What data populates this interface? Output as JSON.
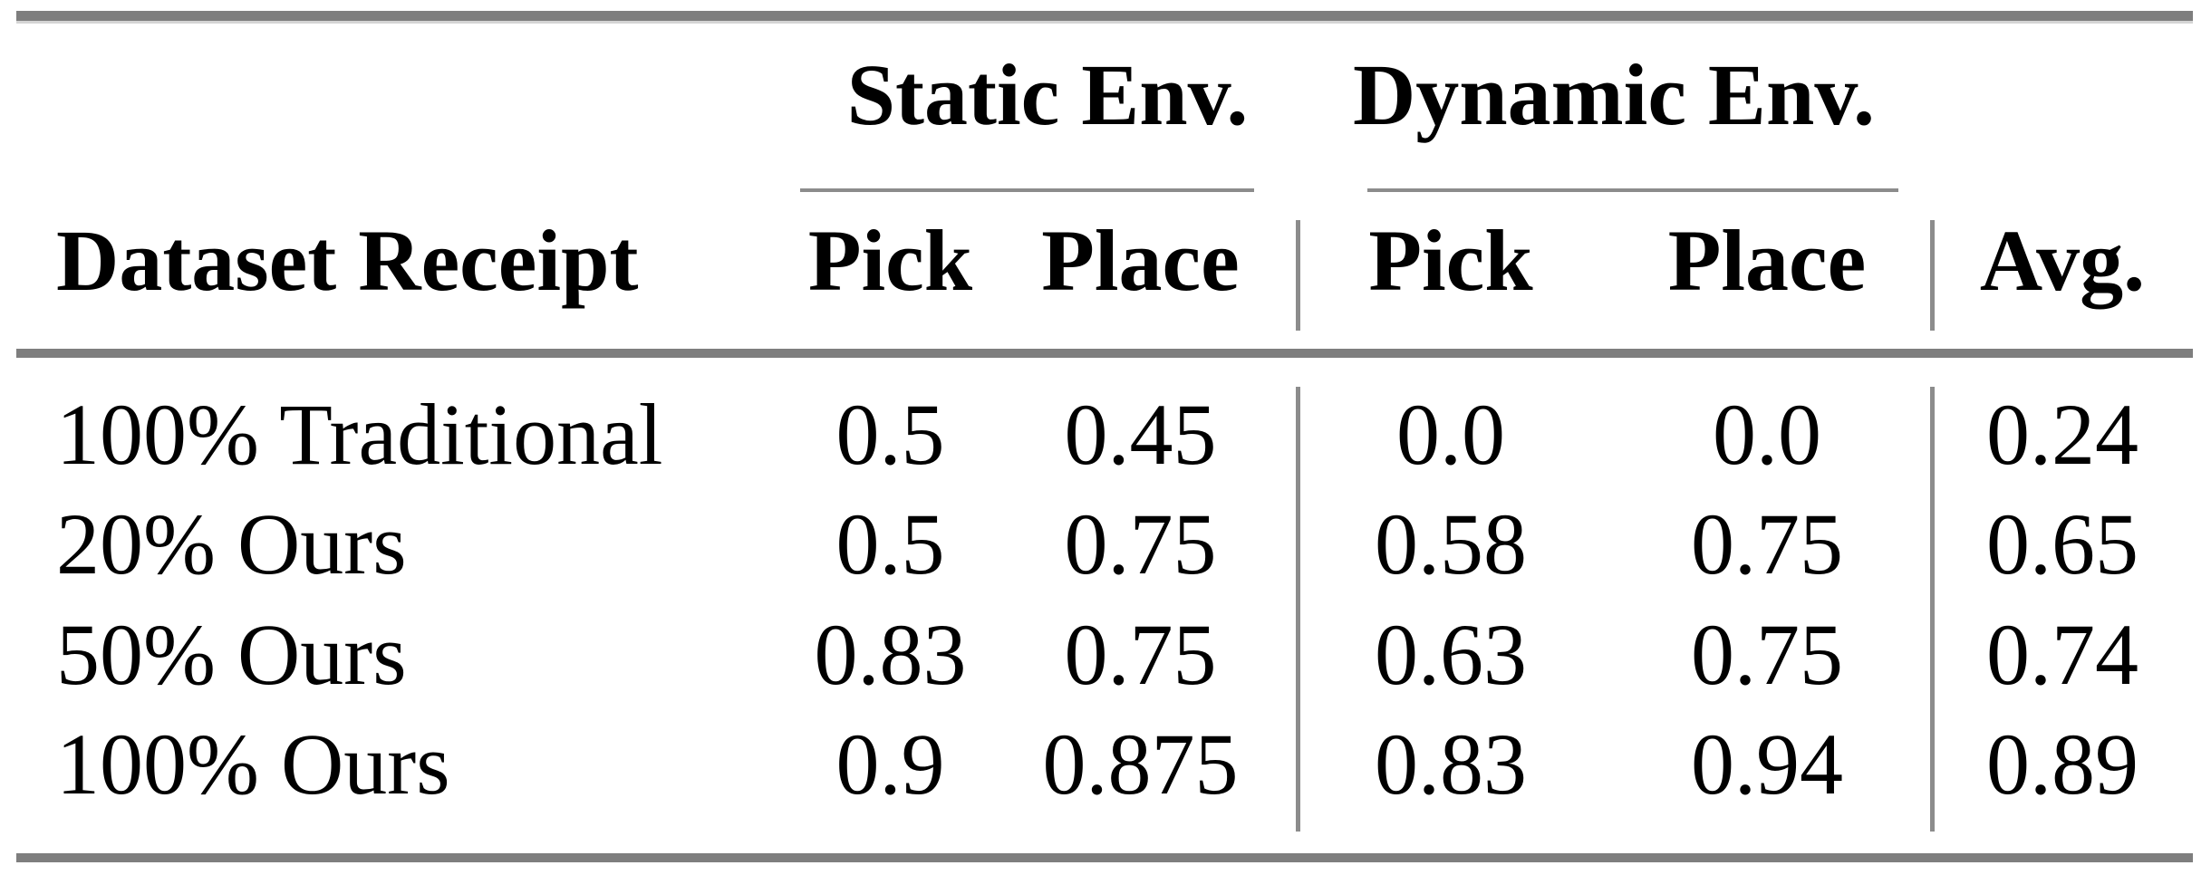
{
  "table": {
    "column_groups": [
      {
        "label": "Static Env."
      },
      {
        "label": "Dynamic Env."
      }
    ],
    "headers": {
      "dataset": "Dataset Receipt",
      "static_pick": "Pick",
      "static_place": "Place",
      "dynamic_pick": "Pick",
      "dynamic_place": "Place",
      "avg": "Avg."
    },
    "rows": [
      {
        "dataset": "100% Traditional",
        "static_pick": "0.5",
        "static_place": "0.45",
        "dynamic_pick": "0.0",
        "dynamic_place": "0.0",
        "avg": "0.24"
      },
      {
        "dataset": "20% Ours",
        "static_pick": "0.5",
        "static_place": "0.75",
        "dynamic_pick": "0.58",
        "dynamic_place": "0.75",
        "avg": "0.65"
      },
      {
        "dataset": "50% Ours",
        "static_pick": "0.83",
        "static_place": "0.75",
        "dynamic_pick": "0.63",
        "dynamic_place": "0.75",
        "avg": "0.74"
      },
      {
        "dataset": "100% Ours",
        "static_pick": "0.9",
        "static_place": "0.875",
        "dynamic_pick": "0.83",
        "dynamic_place": "0.94",
        "avg": "0.89"
      }
    ],
    "colors": {
      "rule_heavy": "#7e7e7e",
      "rule_light": "#8c8c8c",
      "text": "#000000",
      "background": "#ffffff"
    }
  },
  "chart_data": {
    "type": "table",
    "column_groups": [
      "Static Env.",
      "Dynamic Env."
    ],
    "columns": [
      "Dataset Receipt",
      "Static Env. Pick",
      "Static Env. Place",
      "Dynamic Env. Pick",
      "Dynamic Env. Place",
      "Avg."
    ],
    "rows": [
      [
        "100% Traditional",
        0.5,
        0.45,
        0.0,
        0.0,
        0.24
      ],
      [
        "20% Ours",
        0.5,
        0.75,
        0.58,
        0.75,
        0.65
      ],
      [
        "50% Ours",
        0.83,
        0.75,
        0.63,
        0.75,
        0.74
      ],
      [
        "100% Ours",
        0.9,
        0.875,
        0.83,
        0.94,
        0.89
      ]
    ]
  }
}
